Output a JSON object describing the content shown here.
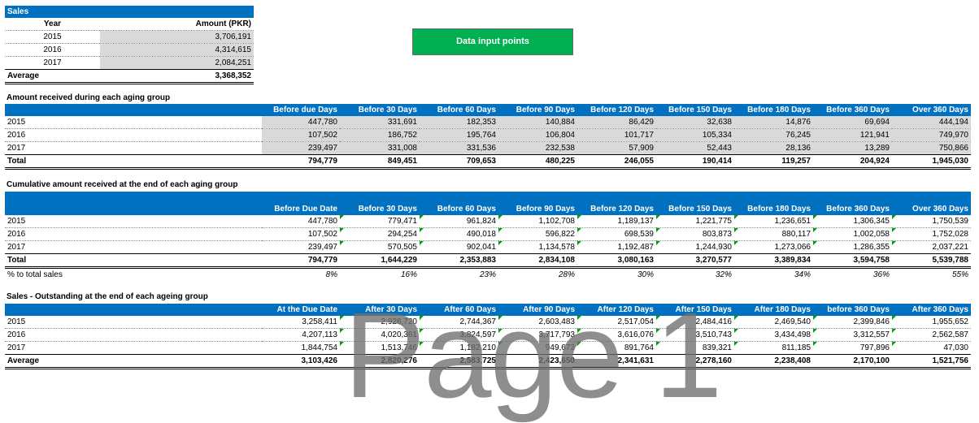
{
  "sales": {
    "title": "Sales",
    "headers": [
      "Year",
      "Amount (PKR)"
    ],
    "rows": [
      [
        "2015",
        "3,706,191"
      ],
      [
        "2016",
        "4,314,615"
      ],
      [
        "2017",
        "2,084,251"
      ]
    ],
    "average_label": "Average",
    "average_value": "3,368,352"
  },
  "data_input_label": "Data input points",
  "received": {
    "title": "Amount received during each aging group",
    "headers": [
      "Before due Days",
      "Before 30 Days",
      "Before 60 Days",
      "Before 90 Days",
      "Before 120 Days",
      "Before 150 Days",
      "Before 180 Days",
      "Before 360 Days",
      "Over 360 Days"
    ],
    "rows": [
      {
        "label": "2015",
        "values": [
          "447,780",
          "331,691",
          "182,353",
          "140,884",
          "86,429",
          "32,638",
          "14,876",
          "69,694",
          "444,194"
        ]
      },
      {
        "label": "2016",
        "values": [
          "107,502",
          "186,752",
          "195,764",
          "106,804",
          "101,717",
          "105,334",
          "76,245",
          "121,941",
          "749,970"
        ]
      },
      {
        "label": "2017",
        "values": [
          "239,497",
          "331,008",
          "331,536",
          "232,538",
          "57,909",
          "52,443",
          "28,136",
          "13,289",
          "750,866"
        ]
      }
    ],
    "total": {
      "label": "Total",
      "values": [
        "794,779",
        "849,451",
        "709,653",
        "480,225",
        "246,055",
        "190,414",
        "119,257",
        "204,924",
        "1,945,030"
      ]
    }
  },
  "cumulative": {
    "title": "Cumulative amount received at the end of each aging group",
    "headers": [
      "Before Due Date",
      "Before 30 Days",
      "Before 60 Days",
      "Before 90 Days",
      "Before 120 Days",
      "Before 150 Days",
      "Before 180 Days",
      "Before 360 Days",
      "Over 360 Days"
    ],
    "rows": [
      {
        "label": "2015",
        "values": [
          "447,780",
          "779,471",
          "961,824",
          "1,102,708",
          "1,189,137",
          "1,221,775",
          "1,236,651",
          "1,306,345",
          "1,750,539"
        ]
      },
      {
        "label": "2016",
        "values": [
          "107,502",
          "294,254",
          "490,018",
          "596,822",
          "698,539",
          "803,873",
          "880,117",
          "1,002,058",
          "1,752,028"
        ]
      },
      {
        "label": "2017",
        "values": [
          "239,497",
          "570,505",
          "902,041",
          "1,134,578",
          "1,192,487",
          "1,244,930",
          "1,273,066",
          "1,286,355",
          "2,037,221"
        ]
      }
    ],
    "total": {
      "label": "Total",
      "values": [
        "794,779",
        "1,644,229",
        "2,353,883",
        "2,834,108",
        "3,080,163",
        "3,270,577",
        "3,389,834",
        "3,594,758",
        "5,539,788"
      ]
    },
    "pct": {
      "label": "% to total sales",
      "values": [
        "8%",
        "16%",
        "23%",
        "28%",
        "30%",
        "32%",
        "34%",
        "36%",
        "55%"
      ]
    }
  },
  "outstanding": {
    "title": "Sales - Outstanding at the end of each ageing group",
    "headers": [
      "At the Due Date",
      "After 30 Days",
      "After 60 Days",
      "After 90 Days",
      "After 120 Days",
      "After 150 Days",
      "After 180 Days",
      "before 360 Days",
      "After 360 Days"
    ],
    "rows": [
      {
        "label": "2015",
        "values": [
          "3,258,411",
          "2,926,720",
          "2,744,367",
          "2,603,483",
          "2,517,054",
          "2,484,416",
          "2,469,540",
          "2,399,846",
          "1,955,652"
        ]
      },
      {
        "label": "2016",
        "values": [
          "4,207,113",
          "4,020,361",
          "3,824,597",
          "3,717,793",
          "3,616,076",
          "3,510,743",
          "3,434,498",
          "3,312,557",
          "2,562,587"
        ]
      },
      {
        "label": "2017",
        "values": [
          "1,844,754",
          "1,513,746",
          "1,182,210",
          "949,672",
          "891,764",
          "839,321",
          "811,185",
          "797,896",
          "47,030"
        ]
      }
    ],
    "total": {
      "label": "Average",
      "values": [
        "3,103,426",
        "2,820,276",
        "2,583,725",
        "2,423,650",
        "2,341,631",
        "2,278,160",
        "2,238,408",
        "2,170,100",
        "1,521,756"
      ]
    }
  },
  "watermark": "Page 1"
}
